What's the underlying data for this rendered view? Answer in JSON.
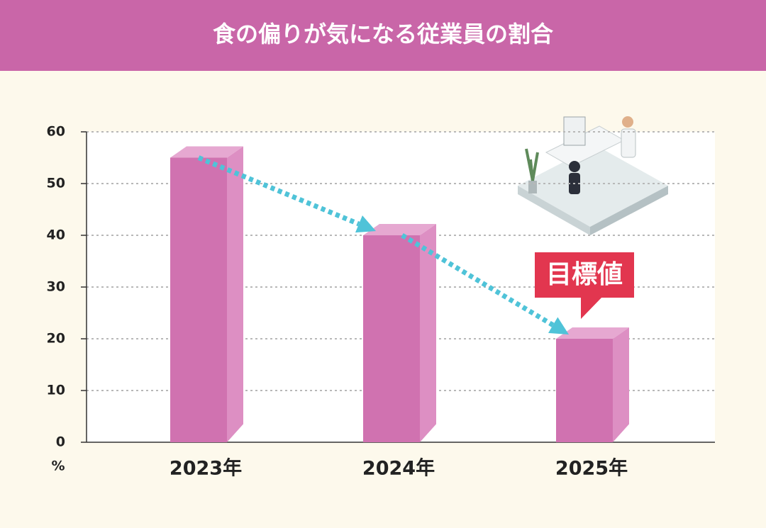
{
  "chart_data": {
    "type": "bar3d",
    "title": "食の偏りが気になる従業員の割合",
    "categories": [
      "2023年",
      "2024年",
      "2025年"
    ],
    "values": [
      55,
      40,
      20
    ],
    "color": "#d072b0",
    "ylim": [
      0,
      60
    ],
    "yticks": [
      0,
      10,
      20,
      30,
      40,
      50,
      60
    ],
    "y_unit": "%",
    "grid": true,
    "annotation": "目標値",
    "annotation_color": "#e2364f",
    "trend_color": "#4fc3d8"
  }
}
